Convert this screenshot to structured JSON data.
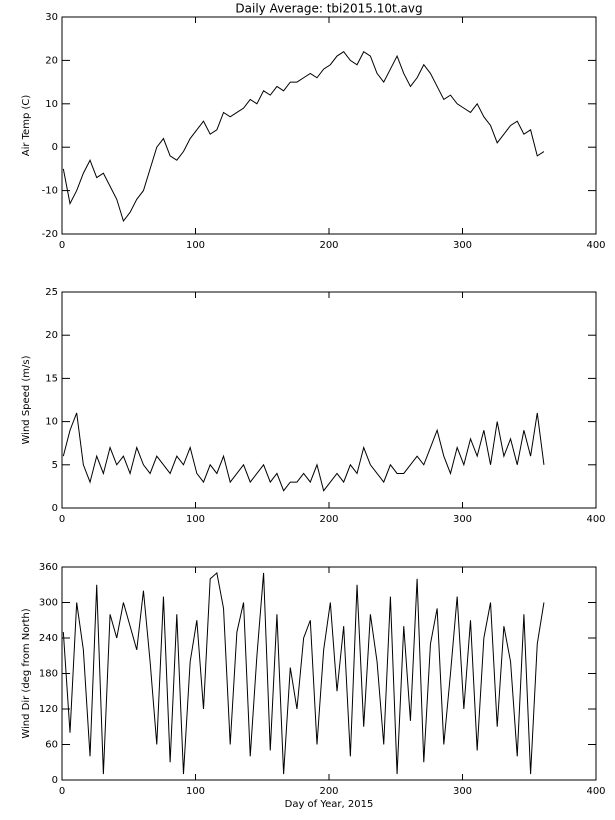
{
  "chart_data": [
    {
      "type": "line",
      "title": "Daily Average: tbi2015.10t.avg",
      "ylabel": "Air Temp (C)",
      "color": "#000000",
      "x": [
        1,
        6,
        11,
        16,
        21,
        26,
        31,
        36,
        41,
        46,
        51,
        56,
        61,
        66,
        71,
        76,
        81,
        86,
        91,
        96,
        101,
        106,
        111,
        116,
        121,
        126,
        131,
        136,
        141,
        146,
        151,
        156,
        161,
        166,
        171,
        176,
        181,
        186,
        191,
        196,
        201,
        206,
        211,
        216,
        221,
        226,
        231,
        236,
        241,
        246,
        251,
        256,
        261,
        266,
        271,
        276,
        281,
        286,
        291,
        296,
        301,
        306,
        311,
        316,
        321,
        326,
        331,
        336,
        341,
        346,
        351,
        356,
        361
      ],
      "values": [
        -5,
        -13,
        -10,
        -6,
        -3,
        -7,
        -6,
        -9,
        -12,
        -17,
        -15,
        -12,
        -10,
        -5,
        0,
        2,
        -2,
        -3,
        -1,
        2,
        4,
        6,
        3,
        4,
        8,
        7,
        8,
        9,
        11,
        10,
        13,
        12,
        14,
        13,
        15,
        15,
        16,
        17,
        16,
        18,
        19,
        21,
        22,
        20,
        19,
        22,
        21,
        17,
        15,
        18,
        21,
        17,
        14,
        16,
        19,
        17,
        14,
        11,
        12,
        10,
        9,
        8,
        10,
        7,
        5,
        1,
        3,
        5,
        6,
        3,
        4,
        -2,
        -1
      ],
      "xlim": [
        0,
        400
      ],
      "xticks": [
        0,
        100,
        200,
        300,
        400
      ],
      "ylim": [
        -20,
        30
      ],
      "yticks": [
        -20,
        -10,
        0,
        10,
        20,
        30
      ]
    },
    {
      "type": "line",
      "ylabel": "Wind Speed (m/s)",
      "color": "#000000",
      "x": [
        1,
        6,
        11,
        16,
        21,
        26,
        31,
        36,
        41,
        46,
        51,
        56,
        61,
        66,
        71,
        76,
        81,
        86,
        91,
        96,
        101,
        106,
        111,
        116,
        121,
        126,
        131,
        136,
        141,
        146,
        151,
        156,
        161,
        166,
        171,
        176,
        181,
        186,
        191,
        196,
        201,
        206,
        211,
        216,
        221,
        226,
        231,
        236,
        241,
        246,
        251,
        256,
        261,
        266,
        271,
        276,
        281,
        286,
        291,
        296,
        301,
        306,
        311,
        316,
        321,
        326,
        331,
        336,
        341,
        346,
        351,
        356,
        361
      ],
      "values": [
        6,
        9,
        11,
        5,
        3,
        6,
        4,
        7,
        5,
        6,
        4,
        7,
        5,
        4,
        6,
        5,
        4,
        6,
        5,
        7,
        4,
        3,
        5,
        4,
        6,
        3,
        4,
        5,
        3,
        4,
        5,
        3,
        4,
        2,
        3,
        3,
        4,
        3,
        5,
        2,
        3,
        4,
        3,
        5,
        4,
        7,
        5,
        4,
        3,
        5,
        4,
        4,
        5,
        6,
        5,
        7,
        9,
        6,
        4,
        7,
        5,
        8,
        6,
        9,
        5,
        10,
        6,
        8,
        5,
        9,
        6,
        11,
        5
      ],
      "xlim": [
        0,
        400
      ],
      "xticks": [
        0,
        100,
        200,
        300,
        400
      ],
      "ylim": [
        0,
        25
      ],
      "yticks": [
        0,
        5,
        10,
        15,
        20,
        25
      ]
    },
    {
      "type": "line",
      "ylabel": "Wind Dir (deg from North)",
      "xlabel": "Day of Year, 2015",
      "color": "#000000",
      "x": [
        1,
        6,
        11,
        16,
        21,
        26,
        31,
        36,
        41,
        46,
        51,
        56,
        61,
        66,
        71,
        76,
        81,
        86,
        91,
        96,
        101,
        106,
        111,
        116,
        121,
        126,
        131,
        136,
        141,
        146,
        151,
        156,
        161,
        166,
        171,
        176,
        181,
        186,
        191,
        196,
        201,
        206,
        211,
        216,
        221,
        226,
        231,
        236,
        241,
        246,
        251,
        256,
        261,
        266,
        271,
        276,
        281,
        286,
        291,
        296,
        301,
        306,
        311,
        316,
        321,
        326,
        331,
        336,
        341,
        346,
        351,
        356,
        361
      ],
      "values": [
        250,
        80,
        300,
        220,
        40,
        330,
        10,
        280,
        240,
        300,
        260,
        220,
        320,
        200,
        60,
        310,
        30,
        280,
        10,
        200,
        270,
        120,
        340,
        350,
        290,
        60,
        250,
        300,
        40,
        210,
        350,
        50,
        280,
        10,
        190,
        120,
        240,
        270,
        60,
        220,
        300,
        150,
        260,
        40,
        330,
        90,
        280,
        200,
        60,
        310,
        10,
        260,
        100,
        340,
        30,
        230,
        290,
        60,
        180,
        310,
        120,
        270,
        50,
        240,
        300,
        90,
        260,
        200,
        40,
        280,
        10,
        230,
        300
      ],
      "xlim": [
        0,
        400
      ],
      "xticks": [
        0,
        100,
        200,
        300,
        400
      ],
      "ylim": [
        0,
        360
      ],
      "yticks": [
        0,
        60,
        120,
        180,
        240,
        300,
        360
      ]
    }
  ]
}
